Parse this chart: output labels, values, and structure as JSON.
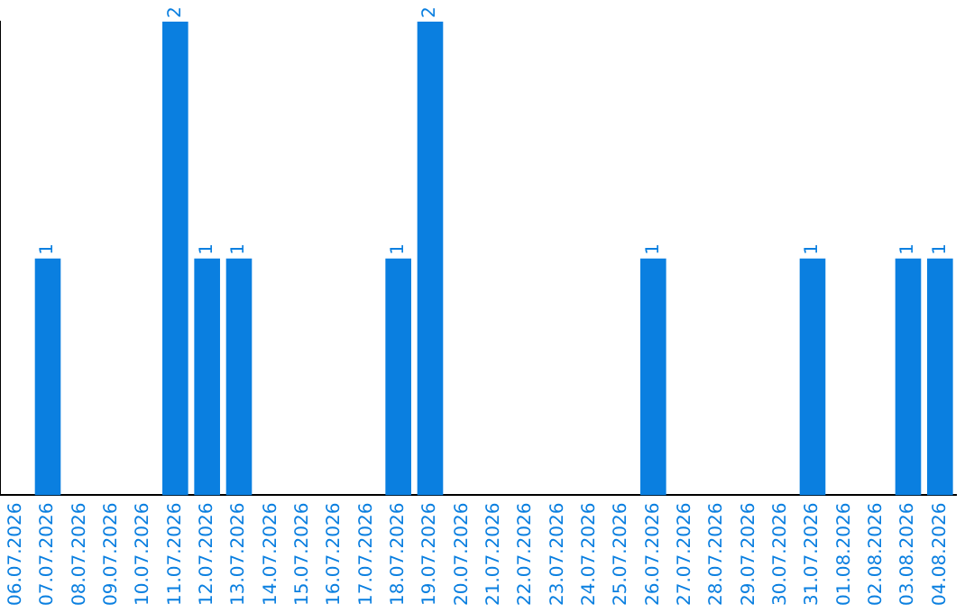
{
  "chart_data": {
    "type": "bar",
    "categories": [
      "06.07.2026",
      "07.07.2026",
      "08.07.2026",
      "09.07.2026",
      "10.07.2026",
      "11.07.2026",
      "12.07.2026",
      "13.07.2026",
      "14.07.2026",
      "15.07.2026",
      "16.07.2026",
      "17.07.2026",
      "18.07.2026",
      "19.07.2026",
      "20.07.2026",
      "21.07.2026",
      "22.07.2026",
      "23.07.2026",
      "24.07.2026",
      "25.07.2026",
      "26.07.2026",
      "27.07.2026",
      "28.07.2026",
      "29.07.2026",
      "30.07.2026",
      "31.07.2026",
      "01.08.2026",
      "02.08.2026",
      "03.08.2026",
      "04.08.2026"
    ],
    "values": [
      0,
      1,
      0,
      0,
      0,
      2,
      1,
      1,
      0,
      0,
      0,
      0,
      1,
      2,
      0,
      0,
      0,
      0,
      0,
      0,
      1,
      0,
      0,
      0,
      0,
      1,
      0,
      0,
      1,
      1
    ],
    "value_labels": [
      null,
      "1",
      null,
      null,
      null,
      "2",
      "1",
      "1",
      null,
      null,
      null,
      null,
      "1",
      "2",
      null,
      null,
      null,
      null,
      null,
      null,
      "1",
      null,
      null,
      null,
      null,
      "1",
      null,
      null,
      "1",
      "1"
    ],
    "color": "#0a7fe0",
    "tick_labels": "x",
    "grid": false,
    "legend": false
  }
}
